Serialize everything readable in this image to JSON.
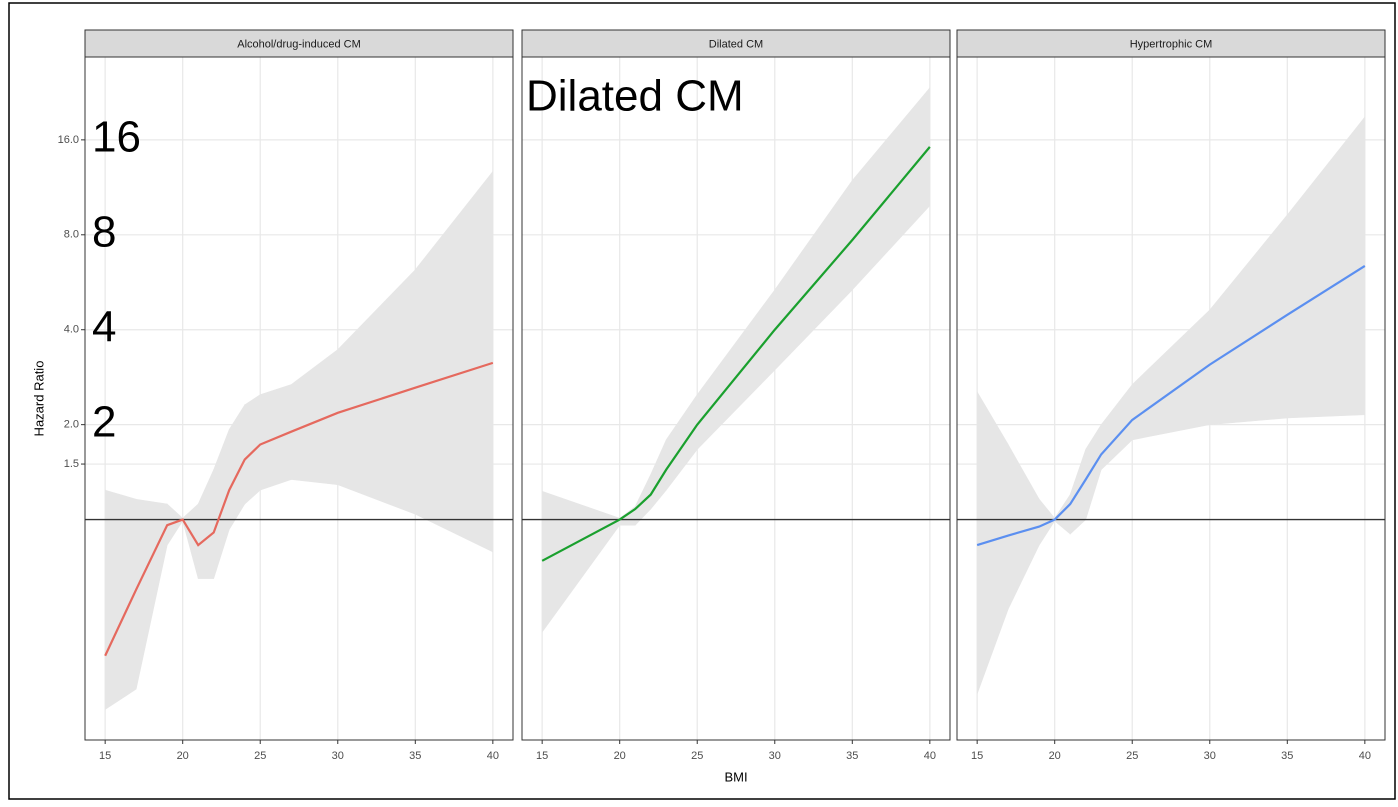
{
  "chart_data": [
    {
      "type": "line",
      "title": "Alcohol/drug-induced CM",
      "ylabel": "Hazard Ratio",
      "log_y": true,
      "grid": true,
      "reference_line": 1,
      "annotations": [
        "16",
        "8",
        "4",
        "2"
      ],
      "x": [
        15,
        17,
        19,
        20,
        21,
        22,
        23,
        24,
        25,
        27,
        30,
        35,
        40
      ],
      "series": [
        {
          "color": "#e5695e",
          "values": [
            0.37,
            0.6,
            0.96,
            1.0,
            0.83,
            0.91,
            1.24,
            1.55,
            1.73,
            1.9,
            2.18,
            2.62,
            3.14
          ],
          "upper": [
            1.24,
            1.16,
            1.12,
            1.01,
            1.12,
            1.44,
            1.93,
            2.31,
            2.49,
            2.68,
            3.46,
            6.2,
            12.7
          ],
          "lower": [
            0.25,
            0.29,
            0.83,
            0.99,
            0.65,
            0.65,
            0.93,
            1.12,
            1.24,
            1.34,
            1.29,
            1.04,
            0.79
          ]
        }
      ],
      "xlim": [
        13.7,
        41.3
      ],
      "ylim": [
        0.2,
        29.3
      ],
      "xticks": [
        15,
        20,
        25,
        30,
        35,
        40
      ],
      "yticks": [
        1.5,
        {
          "value": 2,
          "label": "2.0"
        },
        {
          "value": 4,
          "label": "4.0"
        },
        {
          "value": 8,
          "label": "8.0"
        },
        {
          "value": 16,
          "label": "16.0"
        }
      ]
    },
    {
      "type": "line",
      "title": "Dilated CM",
      "xlabel": "BMI",
      "log_y": true,
      "grid": true,
      "reference_line": 1,
      "annotations": [
        "Dilated CM"
      ],
      "x": [
        15,
        20,
        21,
        22,
        23,
        25,
        30,
        35,
        40
      ],
      "series": [
        {
          "color": "#1aa02e",
          "values": [
            0.74,
            1.0,
            1.08,
            1.2,
            1.44,
            2.0,
            4.0,
            7.7,
            15.2
          ],
          "upper": [
            1.23,
            1.01,
            1.1,
            1.39,
            1.79,
            2.49,
            5.35,
            11.9,
            23.4
          ],
          "lower": [
            0.44,
            0.96,
            0.96,
            1.08,
            1.24,
            1.67,
            2.98,
            5.35,
            9.9
          ]
        }
      ],
      "xlim": [
        13.7,
        41.3
      ],
      "ylim": [
        0.2,
        29.3
      ],
      "xticks": [
        15,
        20,
        25,
        30,
        35,
        40
      ],
      "yticks": [
        1.5,
        2,
        4,
        8,
        16
      ]
    },
    {
      "type": "line",
      "title": "Hypertrophic CM",
      "log_y": true,
      "grid": true,
      "reference_line": 1,
      "x": [
        15,
        17,
        19,
        20,
        21,
        22,
        23,
        25,
        30,
        35,
        40
      ],
      "series": [
        {
          "color": "#5b8ff0",
          "values": [
            0.83,
            0.89,
            0.95,
            1.0,
            1.12,
            1.34,
            1.61,
            2.07,
            3.1,
            4.46,
            6.37
          ],
          "upper": [
            2.54,
            1.73,
            1.16,
            1.01,
            1.2,
            1.67,
            2.0,
            2.68,
            4.62,
            9.25,
            18.9
          ],
          "lower": [
            0.28,
            0.52,
            0.83,
            0.99,
            0.9,
            1.0,
            1.44,
            1.79,
            2.0,
            2.1,
            2.15
          ]
        }
      ],
      "xlim": [
        13.7,
        41.3
      ],
      "ylim": [
        0.2,
        29.3
      ],
      "xticks": [
        15,
        20,
        25,
        30,
        35,
        40
      ],
      "yticks": [
        1.5,
        2,
        4,
        8,
        16
      ]
    }
  ]
}
